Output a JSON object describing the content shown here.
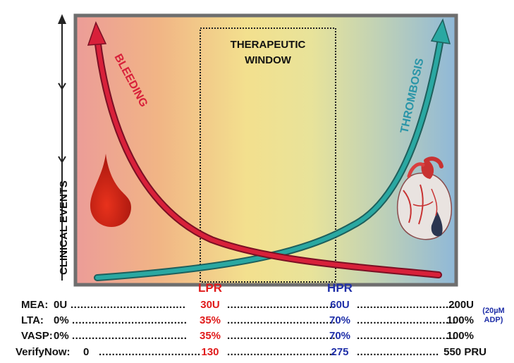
{
  "axis": {
    "y_label": "CLINICAL EVENTS"
  },
  "window": {
    "line1": "THERAPEUTIC",
    "line2": "WINDOW"
  },
  "curves": {
    "bleeding": {
      "label": "BLEEDING",
      "color": "#d8203a"
    },
    "thrombosis": {
      "label": "THROMBOSIS",
      "color": "#2aa8a2"
    }
  },
  "markers": {
    "lpr": "LPR",
    "hpr": "HPR"
  },
  "rows": [
    {
      "name": "MEA:",
      "start": "0U",
      "lpr": "30U",
      "hpr": "60U",
      "end": "200U"
    },
    {
      "name": "LTA:",
      "start": "0%",
      "lpr": "35%",
      "hpr": "70%",
      "end": "100%"
    },
    {
      "name": "VASP:",
      "start": "0%",
      "lpr": "35%",
      "hpr": "70%",
      "end": "100%"
    },
    {
      "name": "VerifyNow:",
      "start": "0",
      "lpr": "130",
      "hpr": "275",
      "end": "550 PRU"
    }
  ],
  "note": {
    "line1": "(20µM",
    "line2": "ADP)"
  },
  "colors": {
    "lpr": "#e01b1b",
    "hpr": "#1f2fa8",
    "frame": "#6e6e6e"
  }
}
